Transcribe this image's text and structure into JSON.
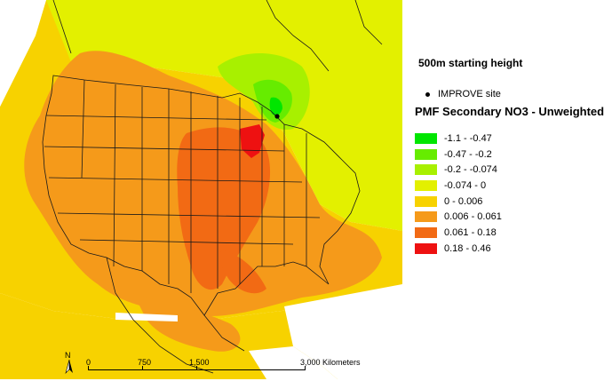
{
  "map": {
    "site_marker_name": "IMPROVE site",
    "north_label": "N"
  },
  "legend": {
    "height_title": "500m starting height",
    "site_label": "IMPROVE site",
    "title": "PMF Secondary NO3 - Unweighted",
    "items": [
      {
        "label": "-1.1 - -0.47",
        "color": "#00e600"
      },
      {
        "label": "-0.47 - -0.2",
        "color": "#66ec00"
      },
      {
        "label": "-0.2 - -0.074",
        "color": "#a8f000"
      },
      {
        "label": "-0.074 - 0",
        "color": "#e3f000"
      },
      {
        "label": "0 - 0.006",
        "color": "#f7d200"
      },
      {
        "label": "0.006 - 0.061",
        "color": "#f59a1a"
      },
      {
        "label": "0.061 - 0.18",
        "color": "#f26a14"
      },
      {
        "label": "0.18 - 0.46",
        "color": "#ee1111"
      }
    ]
  },
  "scale": {
    "labels": [
      "0",
      "750",
      "1,500",
      "3,000 Kilometers"
    ]
  },
  "colors": {
    "ocean": "#ffffff",
    "boundary": "#1a1a1a",
    "site": "#000000"
  }
}
